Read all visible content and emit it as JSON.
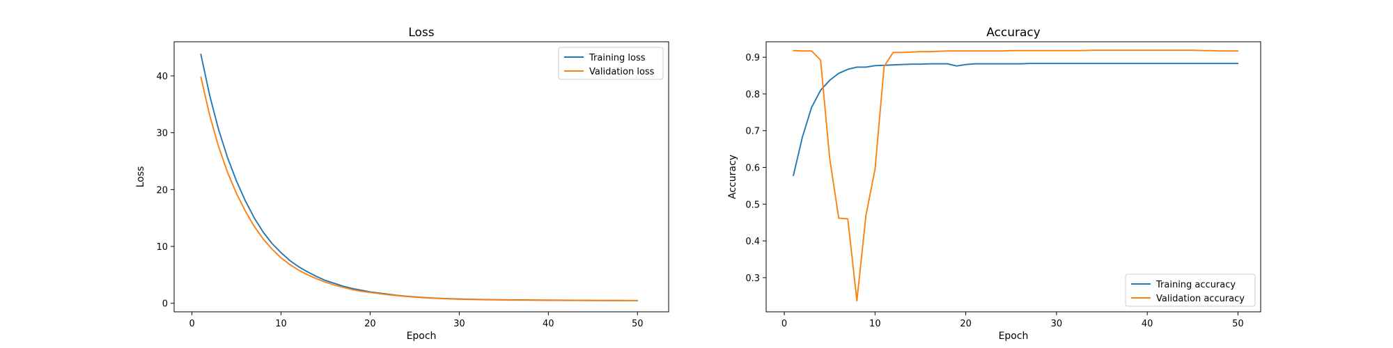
{
  "chart_data": [
    {
      "type": "line",
      "title": "Loss",
      "xlabel": "Epoch",
      "ylabel": "Loss",
      "xlim": [
        -2,
        53.5
      ],
      "ylim": [
        -1.5,
        46
      ],
      "xticks": [
        0,
        10,
        20,
        30,
        40,
        50
      ],
      "yticks": [
        0,
        10,
        20,
        30,
        40
      ],
      "grid": false,
      "legend_position": "top-right",
      "series": [
        {
          "name": "Training loss",
          "color": "#1f77b4",
          "x": [
            1,
            2,
            3,
            4,
            5,
            6,
            7,
            8,
            9,
            10,
            11,
            12,
            13,
            14,
            15,
            16,
            17,
            18,
            19,
            20,
            21,
            22,
            23,
            24,
            25,
            26,
            27,
            28,
            29,
            30,
            31,
            32,
            33,
            34,
            35,
            36,
            37,
            38,
            39,
            40,
            41,
            42,
            43,
            44,
            45,
            46,
            47,
            48,
            49,
            50
          ],
          "values": [
            43.8,
            36.5,
            30.5,
            25.6,
            21.5,
            18.0,
            15.0,
            12.5,
            10.5,
            8.9,
            7.5,
            6.4,
            5.5,
            4.7,
            4.0,
            3.5,
            3.0,
            2.6,
            2.3,
            2.0,
            1.8,
            1.6,
            1.4,
            1.25,
            1.12,
            1.02,
            0.93,
            0.86,
            0.8,
            0.75,
            0.71,
            0.68,
            0.65,
            0.63,
            0.61,
            0.59,
            0.58,
            0.57,
            0.56,
            0.55,
            0.54,
            0.53,
            0.52,
            0.51,
            0.5,
            0.5,
            0.49,
            0.49,
            0.48,
            0.48
          ]
        },
        {
          "name": "Validation loss",
          "color": "#ff7f0e",
          "x": [
            1,
            2,
            3,
            4,
            5,
            6,
            7,
            8,
            9,
            10,
            11,
            12,
            13,
            14,
            15,
            16,
            17,
            18,
            19,
            20,
            21,
            22,
            23,
            24,
            25,
            26,
            27,
            28,
            29,
            30,
            31,
            32,
            33,
            34,
            35,
            36,
            37,
            38,
            39,
            40,
            41,
            42,
            43,
            44,
            45,
            46,
            47,
            48,
            49,
            50
          ],
          "values": [
            39.8,
            33.0,
            27.5,
            23.0,
            19.3,
            16.2,
            13.5,
            11.3,
            9.5,
            8.0,
            6.8,
            5.8,
            5.0,
            4.3,
            3.7,
            3.2,
            2.8,
            2.4,
            2.1,
            1.9,
            1.7,
            1.5,
            1.35,
            1.2,
            1.08,
            0.98,
            0.9,
            0.83,
            0.77,
            0.72,
            0.68,
            0.65,
            0.62,
            0.6,
            0.58,
            0.56,
            0.55,
            0.54,
            0.53,
            0.52,
            0.51,
            0.5,
            0.5,
            0.49,
            0.49,
            0.48,
            0.48,
            0.47,
            0.47,
            0.47
          ]
        }
      ]
    },
    {
      "type": "line",
      "title": "Accuracy",
      "xlabel": "Epoch",
      "ylabel": "Accuracy",
      "xlim": [
        -2,
        52.5
      ],
      "ylim": [
        0.207,
        0.942
      ],
      "xticks": [
        0,
        10,
        20,
        30,
        40,
        50
      ],
      "yticks": [
        0.3,
        0.4,
        0.5,
        0.6,
        0.7,
        0.8,
        0.9
      ],
      "grid": false,
      "legend_position": "bottom-right",
      "series": [
        {
          "name": "Training accuracy",
          "color": "#1f77b4",
          "x": [
            1,
            2,
            3,
            4,
            5,
            6,
            7,
            8,
            9,
            10,
            11,
            12,
            13,
            14,
            15,
            16,
            17,
            18,
            19,
            20,
            21,
            22,
            23,
            24,
            25,
            26,
            27,
            28,
            29,
            30,
            31,
            32,
            33,
            34,
            35,
            36,
            37,
            38,
            39,
            40,
            41,
            42,
            43,
            44,
            45,
            46,
            47,
            48,
            49,
            50
          ],
          "values": [
            0.578,
            0.683,
            0.763,
            0.81,
            0.837,
            0.856,
            0.867,
            0.873,
            0.873,
            0.877,
            0.878,
            0.879,
            0.88,
            0.881,
            0.881,
            0.882,
            0.882,
            0.882,
            0.876,
            0.88,
            0.882,
            0.882,
            0.882,
            0.882,
            0.882,
            0.882,
            0.883,
            0.883,
            0.883,
            0.883,
            0.883,
            0.883,
            0.883,
            0.883,
            0.883,
            0.883,
            0.883,
            0.883,
            0.883,
            0.883,
            0.883,
            0.883,
            0.883,
            0.883,
            0.883,
            0.883,
            0.883,
            0.883,
            0.883,
            0.883
          ]
        },
        {
          "name": "Validation accuracy",
          "color": "#ff7f0e",
          "x": [
            1,
            2,
            3,
            4,
            5,
            6,
            7,
            8,
            9,
            10,
            11,
            12,
            13,
            14,
            15,
            16,
            17,
            18,
            19,
            20,
            21,
            22,
            23,
            24,
            25,
            26,
            27,
            28,
            29,
            30,
            31,
            32,
            33,
            34,
            35,
            36,
            37,
            38,
            39,
            40,
            41,
            42,
            43,
            44,
            45,
            46,
            47,
            48,
            49,
            50
          ],
          "values": [
            0.918,
            0.917,
            0.917,
            0.892,
            0.625,
            0.462,
            0.46,
            0.237,
            0.47,
            0.595,
            0.875,
            0.913,
            0.913,
            0.914,
            0.915,
            0.915,
            0.916,
            0.917,
            0.917,
            0.917,
            0.917,
            0.917,
            0.917,
            0.917,
            0.918,
            0.918,
            0.918,
            0.918,
            0.918,
            0.918,
            0.918,
            0.918,
            0.918,
            0.919,
            0.919,
            0.919,
            0.919,
            0.919,
            0.919,
            0.919,
            0.919,
            0.919,
            0.919,
            0.919,
            0.919,
            0.918,
            0.918,
            0.917,
            0.917,
            0.917
          ]
        }
      ]
    }
  ]
}
